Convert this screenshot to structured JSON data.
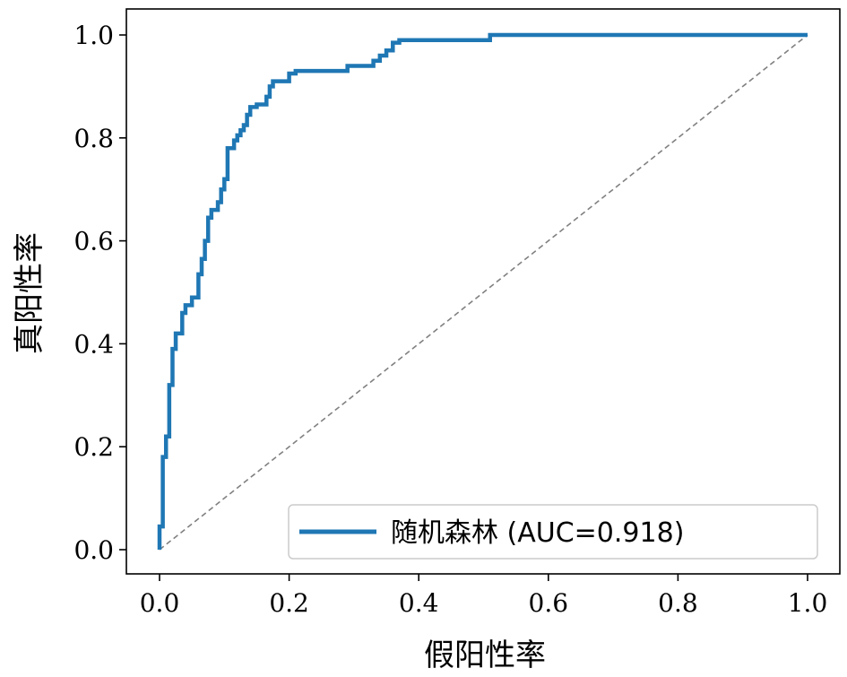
{
  "chart_data": {
    "type": "line",
    "title": "",
    "xlabel": "假阳性率",
    "ylabel": "真阳性率",
    "xlim": [
      0.0,
      1.0
    ],
    "ylim": [
      0.0,
      1.0
    ],
    "xticks": [
      "0.0",
      "0.2",
      "0.4",
      "0.6",
      "0.8",
      "1.0"
    ],
    "yticks": [
      "0.0",
      "0.2",
      "0.4",
      "0.6",
      "0.8",
      "1.0"
    ],
    "grid": false,
    "legend_position": "lower-right",
    "series": [
      {
        "name": "随机森林 (AUC=0.918)",
        "color": "#1f77b4",
        "style": "solid",
        "x": [
          0.0,
          0.0,
          0.005,
          0.005,
          0.01,
          0.01,
          0.015,
          0.015,
          0.02,
          0.02,
          0.025,
          0.025,
          0.035,
          0.035,
          0.04,
          0.04,
          0.05,
          0.05,
          0.06,
          0.06,
          0.065,
          0.065,
          0.07,
          0.07,
          0.075,
          0.075,
          0.08,
          0.08,
          0.09,
          0.09,
          0.095,
          0.095,
          0.1,
          0.1,
          0.105,
          0.105,
          0.115,
          0.115,
          0.12,
          0.12,
          0.125,
          0.125,
          0.13,
          0.13,
          0.135,
          0.135,
          0.14,
          0.14,
          0.15,
          0.15,
          0.165,
          0.165,
          0.17,
          0.17,
          0.175,
          0.175,
          0.2,
          0.2,
          0.21,
          0.21,
          0.29,
          0.29,
          0.33,
          0.33,
          0.34,
          0.34,
          0.35,
          0.35,
          0.36,
          0.36,
          0.37,
          0.37,
          0.51,
          0.51,
          1.0
        ],
        "y": [
          0.0,
          0.045,
          0.045,
          0.18,
          0.18,
          0.22,
          0.22,
          0.32,
          0.32,
          0.39,
          0.39,
          0.42,
          0.42,
          0.46,
          0.46,
          0.475,
          0.475,
          0.49,
          0.49,
          0.535,
          0.535,
          0.565,
          0.565,
          0.6,
          0.6,
          0.645,
          0.645,
          0.66,
          0.66,
          0.675,
          0.675,
          0.7,
          0.7,
          0.72,
          0.72,
          0.78,
          0.78,
          0.795,
          0.795,
          0.805,
          0.805,
          0.815,
          0.815,
          0.825,
          0.825,
          0.845,
          0.845,
          0.86,
          0.86,
          0.865,
          0.865,
          0.88,
          0.88,
          0.9,
          0.9,
          0.91,
          0.91,
          0.925,
          0.925,
          0.93,
          0.93,
          0.94,
          0.94,
          0.95,
          0.95,
          0.96,
          0.96,
          0.97,
          0.97,
          0.985,
          0.985,
          0.99,
          0.99,
          1.0,
          1.0
        ]
      },
      {
        "name": "",
        "color": "#808080",
        "style": "dashed",
        "x": [
          0.0,
          1.0
        ],
        "y": [
          0.0,
          1.0
        ]
      }
    ]
  }
}
